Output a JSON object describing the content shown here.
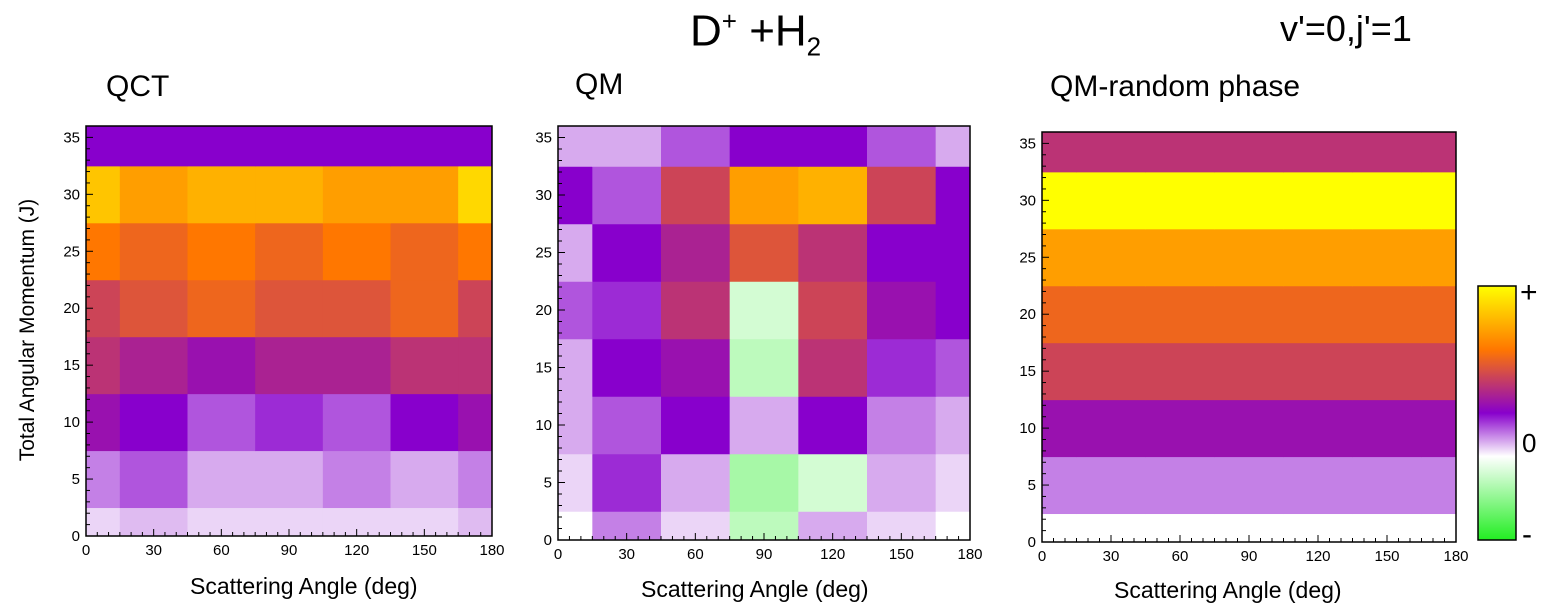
{
  "header": {
    "title_base": "D",
    "title_sup": "+",
    "title_mid": " +H",
    "title_sub": "2",
    "state": "v'=0,j'=1"
  },
  "y_axis_label": "Total Angular Momentum (J)",
  "colorbar": {
    "plus": "+",
    "zero": "0",
    "minus": "-",
    "colors": [
      "#22ee22",
      "#ffffff",
      "#8800cc",
      "#ff7700",
      "#ffff00"
    ]
  },
  "chart_data": [
    {
      "type": "heatmap",
      "title": "QCT",
      "xlabel": "Scattering Angle (deg)",
      "ylabel": "Total Angular Momentum (J)",
      "xlim": [
        0,
        180
      ],
      "ylim": [
        0,
        36
      ],
      "xticks": [
        0,
        30,
        60,
        90,
        120,
        150,
        180
      ],
      "yticks": [
        0,
        5,
        10,
        15,
        20,
        25,
        30,
        35
      ],
      "x": [
        0,
        30,
        60,
        90,
        120,
        150,
        180
      ],
      "y": [
        0,
        5,
        10,
        15,
        20,
        25,
        30,
        35
      ],
      "values": [
        [
          0.05,
          0.08,
          0.05,
          0.05,
          0.05,
          0.05,
          0.08
        ],
        [
          0.15,
          0.2,
          0.1,
          0.1,
          0.15,
          0.1,
          0.15
        ],
        [
          0.35,
          0.3,
          0.2,
          0.25,
          0.2,
          0.3,
          0.35
        ],
        [
          0.45,
          0.4,
          0.35,
          0.4,
          0.4,
          0.45,
          0.45
        ],
        [
          0.5,
          0.55,
          0.6,
          0.55,
          0.55,
          0.6,
          0.5
        ],
        [
          0.65,
          0.6,
          0.65,
          0.6,
          0.65,
          0.6,
          0.65
        ],
        [
          0.85,
          0.75,
          0.8,
          0.8,
          0.75,
          0.75,
          0.9
        ],
        [
          0.3,
          0.3,
          0.3,
          0.3,
          0.3,
          0.3,
          0.3
        ]
      ]
    },
    {
      "type": "heatmap",
      "title": "QM",
      "xlabel": "Scattering Angle (deg)",
      "ylabel": "",
      "xlim": [
        0,
        180
      ],
      "ylim": [
        0,
        36
      ],
      "xticks": [
        0,
        30,
        60,
        90,
        120,
        150,
        180
      ],
      "yticks": [
        0,
        5,
        10,
        15,
        20,
        25,
        30,
        35
      ],
      "x": [
        0,
        30,
        60,
        90,
        120,
        150,
        180
      ],
      "y": [
        0,
        5,
        10,
        15,
        20,
        25,
        30,
        35
      ],
      "values": [
        [
          0.0,
          0.15,
          0.05,
          -0.3,
          0.1,
          0.05,
          0.0
        ],
        [
          0.05,
          0.25,
          0.1,
          -0.4,
          -0.2,
          0.1,
          0.05
        ],
        [
          0.1,
          0.2,
          0.3,
          0.1,
          0.3,
          0.15,
          0.1
        ],
        [
          0.1,
          0.3,
          0.35,
          -0.3,
          0.45,
          0.25,
          0.2
        ],
        [
          0.2,
          0.25,
          0.45,
          -0.2,
          0.5,
          0.35,
          0.3
        ],
        [
          0.1,
          0.3,
          0.4,
          0.55,
          0.45,
          0.3,
          0.3
        ],
        [
          0.3,
          0.2,
          0.5,
          0.75,
          0.8,
          0.5,
          0.3
        ],
        [
          0.1,
          0.1,
          0.2,
          0.3,
          0.3,
          0.2,
          0.1
        ]
      ]
    },
    {
      "type": "heatmap",
      "title": "QM-random phase",
      "xlabel": "Scattering Angle (deg)",
      "ylabel": "",
      "xlim": [
        0,
        180
      ],
      "ylim": [
        0,
        36
      ],
      "xticks": [
        0,
        30,
        60,
        90,
        120,
        150,
        180
      ],
      "yticks": [
        0,
        5,
        10,
        15,
        20,
        25,
        30,
        35
      ],
      "x": [
        0,
        30,
        60,
        90,
        120,
        150,
        180
      ],
      "y": [
        0,
        5,
        10,
        15,
        20,
        25,
        30,
        35
      ],
      "values": [
        [
          0.0,
          0.0,
          0.0,
          0.0,
          0.0,
          0.0,
          0.0
        ],
        [
          0.15,
          0.15,
          0.15,
          0.15,
          0.15,
          0.15,
          0.15
        ],
        [
          0.35,
          0.35,
          0.35,
          0.35,
          0.35,
          0.35,
          0.35
        ],
        [
          0.5,
          0.5,
          0.5,
          0.5,
          0.5,
          0.5,
          0.5
        ],
        [
          0.6,
          0.6,
          0.6,
          0.6,
          0.6,
          0.6,
          0.6
        ],
        [
          0.75,
          0.75,
          0.75,
          0.75,
          0.75,
          0.75,
          0.75
        ],
        [
          1.0,
          1.0,
          1.0,
          1.0,
          1.0,
          1.0,
          1.0
        ],
        [
          0.45,
          0.45,
          0.45,
          0.45,
          0.45,
          0.45,
          0.45
        ]
      ]
    }
  ]
}
